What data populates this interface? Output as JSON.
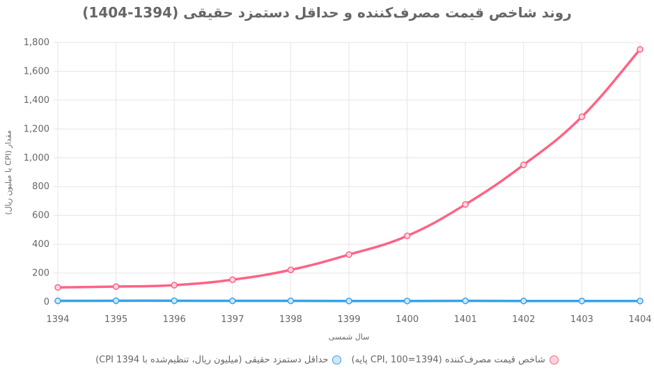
{
  "chart_data": {
    "type": "line",
    "title": "روند شاخص قیمت مصرف‌کننده و حداقل دستمزد حقیقی (1394-1404)",
    "xlabel": "سال شمسی",
    "ylabel": "مقدار (CPI یا میلیون ریال)",
    "x": [
      1394,
      1395,
      1396,
      1397,
      1398,
      1399,
      1400,
      1401,
      1402,
      1403,
      1404
    ],
    "x_tick_labels": [
      "1394",
      "1395",
      "1396",
      "1397",
      "1398",
      "1399",
      "1400",
      "1401",
      "1402",
      "1403",
      "1404"
    ],
    "ylim": [
      0,
      1800
    ],
    "y_tick_labels": [
      "0",
      "200",
      "400",
      "600",
      "800",
      "1,000",
      "1,200",
      "1,400",
      "1,600",
      "1,800"
    ],
    "y_ticks": [
      0,
      200,
      400,
      600,
      800,
      1000,
      1200,
      1400,
      1600,
      1800
    ],
    "grid": true,
    "legend_position": "bottom",
    "series": [
      {
        "name": "شاخص قیمت مصرف‌کننده (CPI, 100=1394 پایه)",
        "color": "#ff6384",
        "fill": "#ffd6df",
        "values": [
          100,
          106,
          116,
          154,
          222,
          328,
          458,
          676,
          951,
          1284,
          1752
        ]
      },
      {
        "name": "حداقل دستمزد حقیقی (میلیون ریال، تنظیم‌شده با CPI 1394)",
        "color": "#36a2eb",
        "fill": "#cfe8fa",
        "values": [
          7,
          8,
          8,
          7,
          7,
          6,
          6,
          7,
          6,
          6,
          6
        ]
      }
    ]
  }
}
